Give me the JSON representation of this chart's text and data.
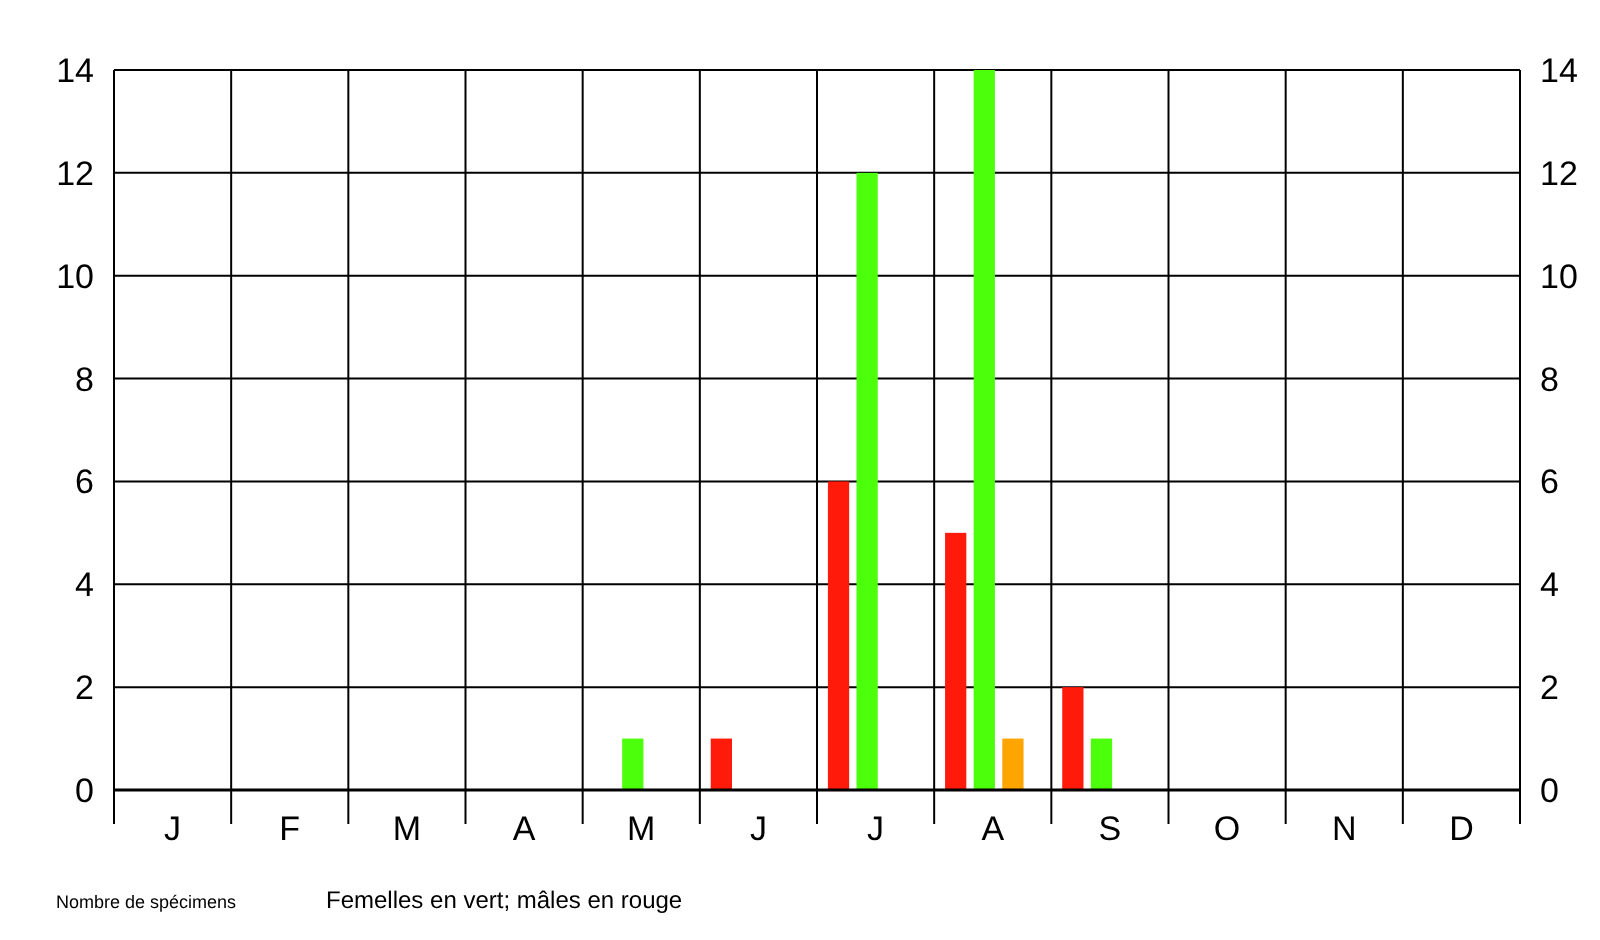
{
  "chart_data": {
    "type": "bar",
    "categories": [
      "J",
      "F",
      "M",
      "A",
      "M",
      "J",
      "J",
      "A",
      "S",
      "O",
      "N",
      "D"
    ],
    "series": [
      {
        "color": "#ff1a0a",
        "values": [
          0,
          0,
          0,
          0,
          0,
          1,
          6,
          5,
          2,
          0,
          0,
          0
        ]
      },
      {
        "color": "#4cff0a",
        "values": [
          0,
          0,
          0,
          0,
          1,
          0,
          12,
          14,
          1,
          0,
          0,
          0
        ]
      },
      {
        "color": "#ffa500",
        "values": [
          0,
          0,
          0,
          0,
          0,
          0,
          0,
          1,
          0,
          0,
          0,
          0
        ]
      }
    ],
    "ylim": [
      0,
      14
    ],
    "yticks": [
      0,
      2,
      4,
      6,
      8,
      10,
      12,
      14
    ],
    "y2lim": [
      0,
      14
    ],
    "y2ticks": [
      0,
      2,
      4,
      6,
      8,
      10,
      12,
      14
    ],
    "grid": true,
    "annotations": [
      "Nombre de spécimens",
      "Femelles en vert; mâles en rouge"
    ]
  }
}
